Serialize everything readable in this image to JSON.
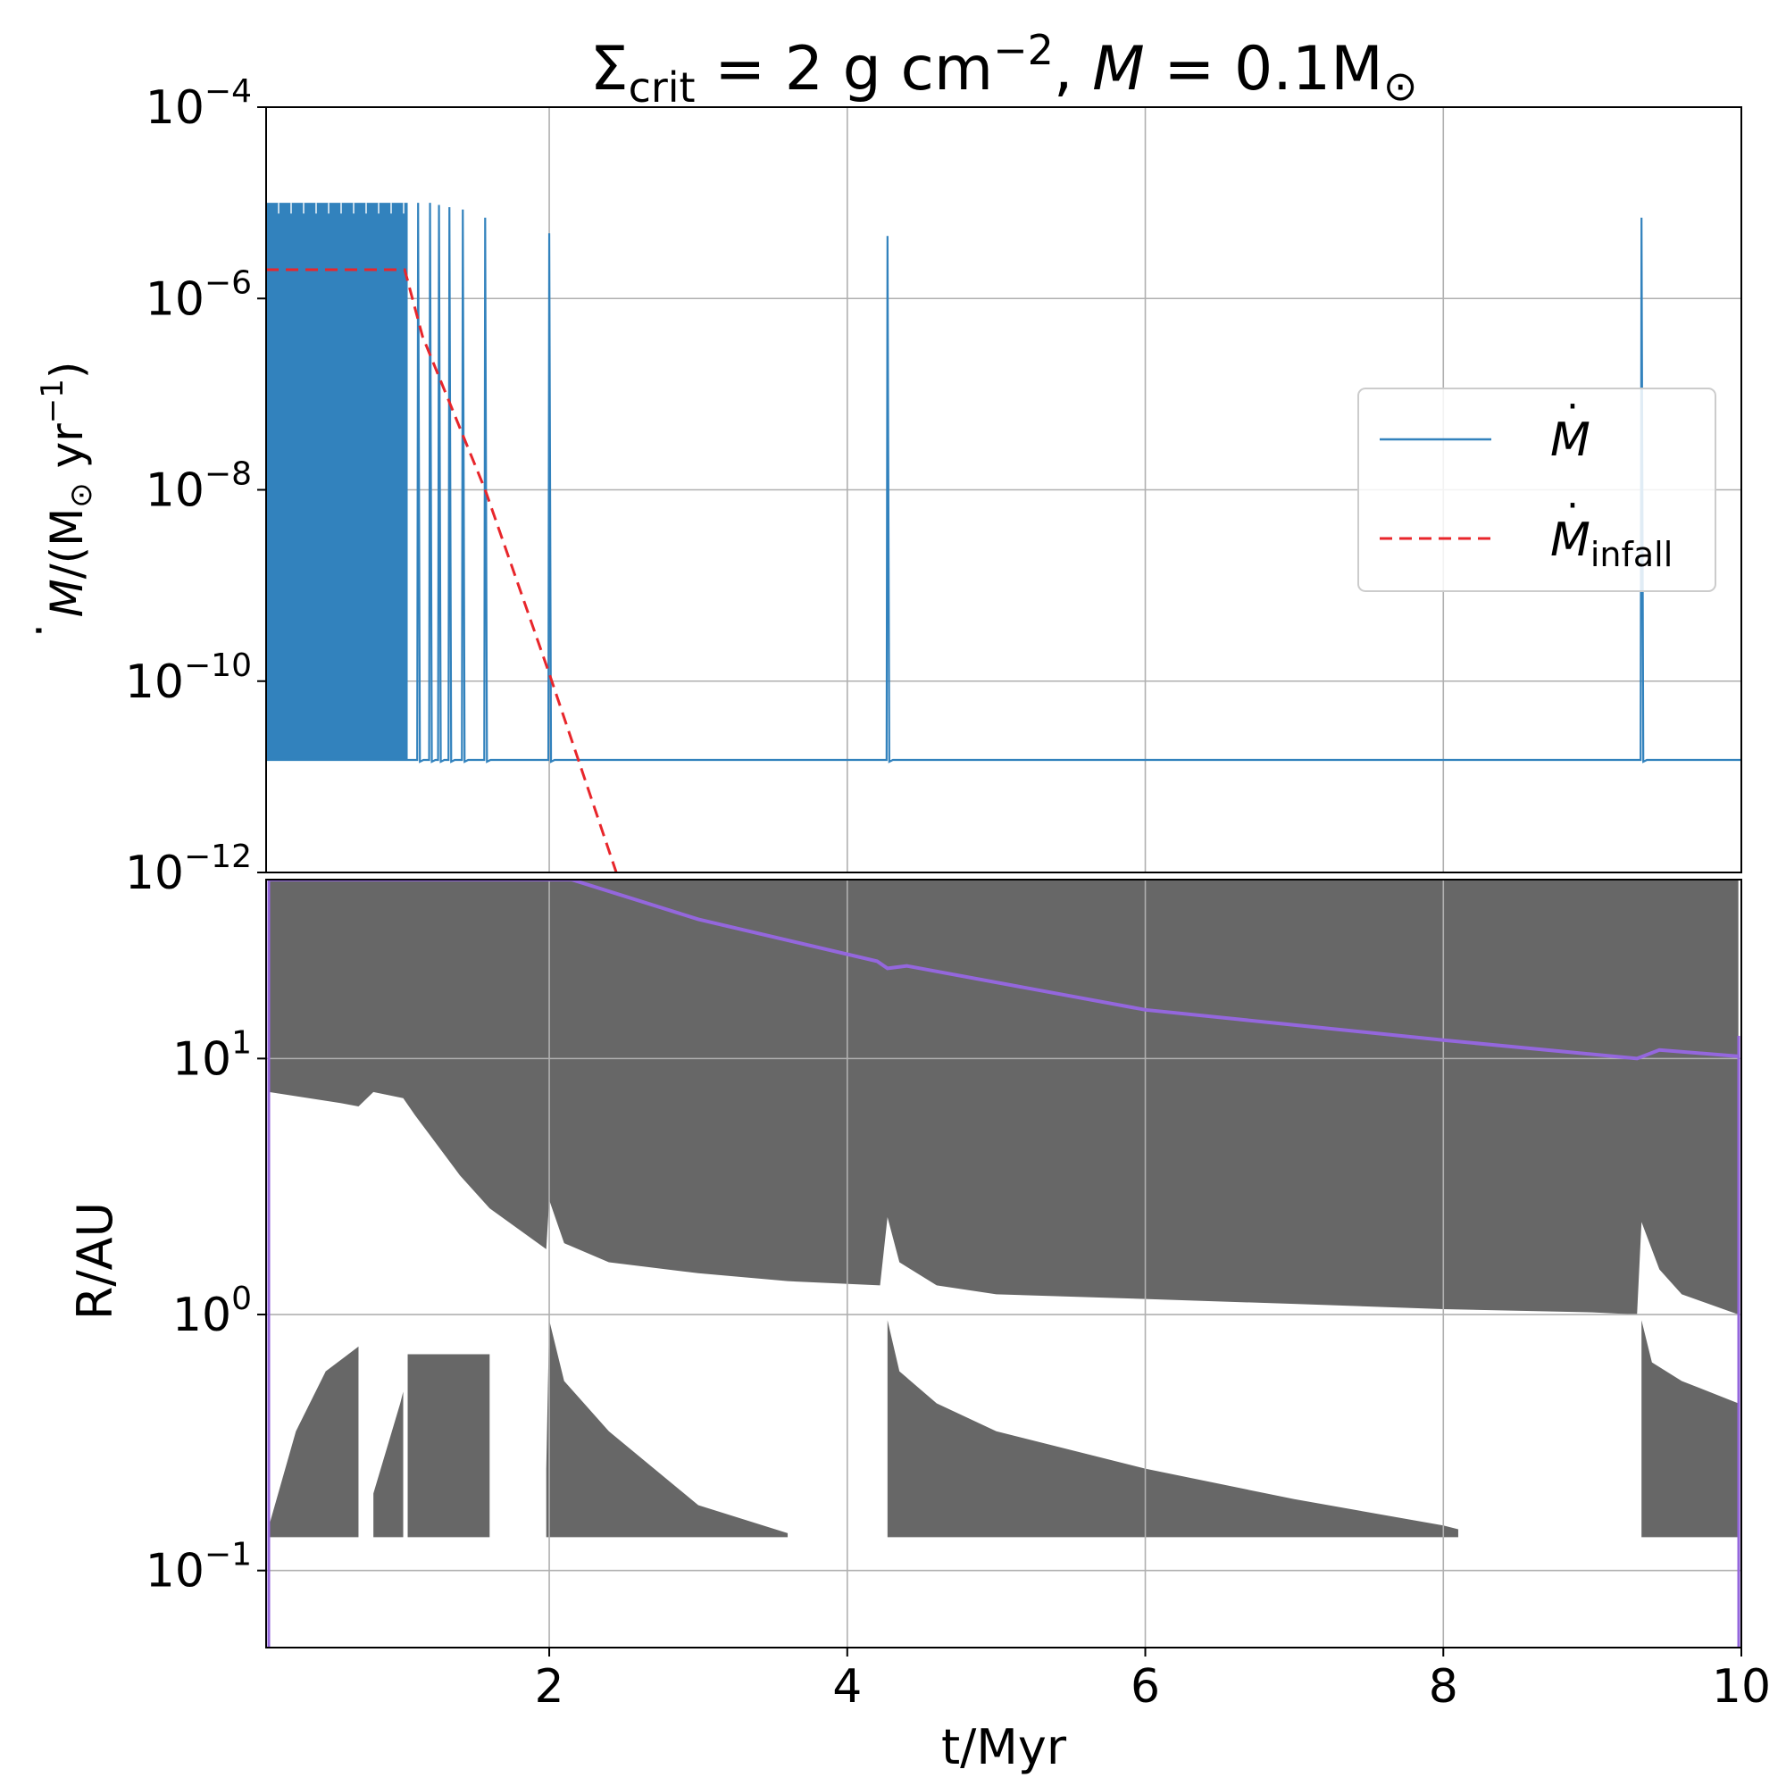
{
  "title": {
    "sigma": "Σ",
    "sigma_sub": "crit",
    "mid": " = 2 g cm",
    "exp": "−2",
    "sep": ", ",
    "m": "M",
    "eq": " = 0.1M",
    "sun": "⊙"
  },
  "chart_data": [
    {
      "type": "line",
      "panel": "top",
      "yscale": "log",
      "xlim": [
        0.1,
        10
      ],
      "ylim": [
        1e-12,
        0.0001
      ],
      "yticks": [
        {
          "base": "10",
          "exp": "−4",
          "value": 0.0001
        },
        {
          "base": "10",
          "exp": "−6",
          "value": 1e-06
        },
        {
          "base": "10",
          "exp": "−8",
          "value": 1e-08
        },
        {
          "base": "10",
          "exp": "−10",
          "value": 1e-10
        },
        {
          "base": "10",
          "exp": "−12",
          "value": 1e-12
        }
      ],
      "ylabel": {
        "dotm": "M",
        "rest": "/(M",
        "sun": "⊙",
        "yr": " yr",
        "exp": "−1",
        "close": ")"
      },
      "legend": {
        "position": "center-right",
        "entries": [
          {
            "label": "M",
            "sub": "",
            "color": "#3282bd",
            "dash": "solid"
          },
          {
            "label": "M",
            "sub": "infall",
            "color": "#e8262b",
            "dash": "dashed"
          }
        ]
      },
      "series": [
        {
          "name": "Mdot",
          "color": "#3282bd",
          "baseline": 1.5e-11,
          "burst_peak": 1e-05,
          "dense_burst_region": [
            0.1,
            1.05
          ],
          "isolated_bursts": [
            {
              "t": 1.12,
              "peak": 1e-05
            },
            {
              "t": 1.2,
              "peak": 1e-05
            },
            {
              "t": 1.26,
              "peak": 9.5e-06
            },
            {
              "t": 1.33,
              "peak": 9e-06
            },
            {
              "t": 1.42,
              "peak": 8.5e-06
            },
            {
              "t": 1.57,
              "peak": 7e-06
            },
            {
              "t": 2.0,
              "peak": 4.8e-06
            },
            {
              "t": 4.27,
              "peak": 4.5e-06
            },
            {
              "t": 9.33,
              "peak": 7e-06
            }
          ]
        },
        {
          "name": "Mdot_infall",
          "color": "#e8262b",
          "x": [
            0.1,
            1.03,
            1.15,
            1.57,
            2.0,
            2.45
          ],
          "y": [
            2e-06,
            2e-06,
            4e-07,
            1e-08,
            1.2e-10,
            1e-12
          ]
        }
      ]
    },
    {
      "type": "area",
      "panel": "bottom",
      "yscale": "log",
      "xlim": [
        0.1,
        10
      ],
      "ylim": [
        0.05,
        50
      ],
      "xlabel": "t/Myr",
      "ylabel": "R/AU",
      "xticks": [
        "2",
        "4",
        "6",
        "8",
        "10"
      ],
      "xtick_values": [
        2,
        4,
        6,
        8,
        10
      ],
      "yticks": [
        {
          "base": "10",
          "exp": "1",
          "value": 10
        },
        {
          "base": "10",
          "exp": "0",
          "value": 1
        },
        {
          "base": "10",
          "exp": "−1",
          "value": 0.1
        }
      ],
      "outer_radius_line": {
        "color": "#9467dd",
        "x": [
          0.12,
          2.15,
          3.0,
          4.2,
          4.27,
          4.4,
          6.0,
          8.0,
          9.3,
          9.45,
          9.98
        ],
        "y": [
          50,
          50,
          35,
          24,
          22.5,
          23,
          15.5,
          11.8,
          10,
          10.8,
          10.2
        ]
      },
      "outer_active_region": {
        "color": "#676767",
        "inner_edge": {
          "x": [
            0.12,
            0.6,
            0.72,
            0.82,
            1.02,
            1.1,
            1.4,
            1.6,
            1.98,
            2.0,
            2.1,
            2.4,
            3.0,
            3.6,
            4.22,
            4.27,
            4.35,
            4.6,
            5.0,
            6.0,
            7.0,
            8.0,
            9.0,
            9.3,
            9.33,
            9.45,
            9.6,
            9.98
          ],
          "y": [
            7.4,
            6.7,
            6.5,
            7.4,
            7.0,
            6.0,
            3.5,
            2.6,
            1.8,
            2.8,
            1.9,
            1.6,
            1.45,
            1.35,
            1.3,
            2.4,
            1.6,
            1.3,
            1.2,
            1.15,
            1.1,
            1.05,
            1.02,
            1.0,
            2.3,
            1.5,
            1.2,
            1.0
          ]
        }
      },
      "inner_active_regions": {
        "color": "#676767",
        "floor": 0.135,
        "blocks": [
          {
            "x": [
              0.12,
              0.3,
              0.5,
              0.72
            ],
            "top": [
              0.15,
              0.35,
              0.6,
              0.75
            ]
          },
          {
            "x": [
              0.82,
              1.0,
              1.02
            ],
            "top": [
              0.2,
              0.45,
              0.5
            ]
          },
          {
            "x": [
              1.05,
              1.6
            ],
            "top": [
              0.7,
              0.7
            ]
          },
          {
            "x": [
              1.98,
              2.0,
              2.1,
              2.4,
              3.0,
              3.6
            ],
            "top": [
              0.25,
              0.95,
              0.55,
              0.35,
              0.18,
              0.14
            ]
          },
          {
            "x": [
              4.27,
              4.35,
              4.6,
              5.0,
              6.0,
              7.0,
              8.0,
              8.1
            ],
            "top": [
              0.95,
              0.6,
              0.45,
              0.35,
              0.25,
              0.19,
              0.15,
              0.145
            ]
          },
          {
            "x": [
              9.33,
              9.4,
              9.6,
              9.98
            ],
            "top": [
              0.95,
              0.65,
              0.55,
              0.45
            ]
          }
        ]
      }
    }
  ]
}
